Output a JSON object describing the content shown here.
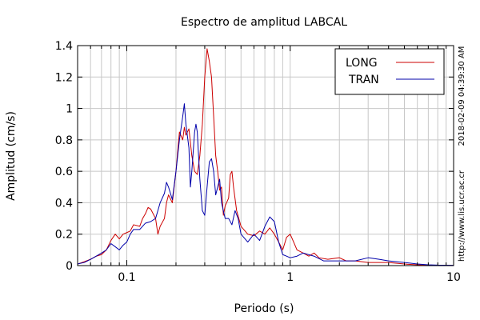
{
  "chart_data": {
    "type": "line",
    "title": "Espectro de amplitud LABCAL",
    "xlabel": "Periodo (s)",
    "ylabel": "Amplitud (cm/s)",
    "xscale": "log",
    "xlim": [
      0.05,
      10
    ],
    "ylim": [
      0,
      1.4
    ],
    "grid": true,
    "legend_position": "top-right",
    "x_ticks": [
      {
        "value": 0.1,
        "label": "0.1"
      },
      {
        "value": 1,
        "label": "1"
      },
      {
        "value": 10,
        "label": "10"
      }
    ],
    "y_ticks": [
      {
        "value": 0,
        "label": "0"
      },
      {
        "value": 0.2,
        "label": "0.2"
      },
      {
        "value": 0.4,
        "label": "0.4"
      },
      {
        "value": 0.6,
        "label": "0.6"
      },
      {
        "value": 0.8,
        "label": "0.8"
      },
      {
        "value": 1.0,
        "label": "1"
      },
      {
        "value": 1.2,
        "label": "1.2"
      },
      {
        "value": 1.4,
        "label": "1.4"
      }
    ],
    "series": [
      {
        "name": "LONG",
        "color": "#cc0000",
        "points": [
          [
            0.05,
            0.01
          ],
          [
            0.055,
            0.025
          ],
          [
            0.06,
            0.04
          ],
          [
            0.065,
            0.06
          ],
          [
            0.07,
            0.07
          ],
          [
            0.075,
            0.1
          ],
          [
            0.08,
            0.16
          ],
          [
            0.085,
            0.2
          ],
          [
            0.09,
            0.17
          ],
          [
            0.095,
            0.2
          ],
          [
            0.1,
            0.21
          ],
          [
            0.105,
            0.22
          ],
          [
            0.11,
            0.26
          ],
          [
            0.12,
            0.25
          ],
          [
            0.125,
            0.3
          ],
          [
            0.13,
            0.33
          ],
          [
            0.135,
            0.37
          ],
          [
            0.14,
            0.36
          ],
          [
            0.15,
            0.3
          ],
          [
            0.155,
            0.2
          ],
          [
            0.16,
            0.25
          ],
          [
            0.17,
            0.3
          ],
          [
            0.175,
            0.4
          ],
          [
            0.18,
            0.45
          ],
          [
            0.19,
            0.4
          ],
          [
            0.2,
            0.6
          ],
          [
            0.205,
            0.73
          ],
          [
            0.21,
            0.85
          ],
          [
            0.22,
            0.8
          ],
          [
            0.225,
            0.88
          ],
          [
            0.23,
            0.83
          ],
          [
            0.24,
            0.87
          ],
          [
            0.25,
            0.7
          ],
          [
            0.26,
            0.6
          ],
          [
            0.27,
            0.58
          ],
          [
            0.28,
            0.7
          ],
          [
            0.29,
            0.9
          ],
          [
            0.3,
            1.2
          ],
          [
            0.31,
            1.38
          ],
          [
            0.32,
            1.3
          ],
          [
            0.33,
            1.2
          ],
          [
            0.34,
            0.95
          ],
          [
            0.35,
            0.7
          ],
          [
            0.36,
            0.6
          ],
          [
            0.37,
            0.48
          ],
          [
            0.38,
            0.5
          ],
          [
            0.39,
            0.32
          ],
          [
            0.4,
            0.38
          ],
          [
            0.42,
            0.43
          ],
          [
            0.43,
            0.58
          ],
          [
            0.44,
            0.6
          ],
          [
            0.45,
            0.5
          ],
          [
            0.47,
            0.35
          ],
          [
            0.5,
            0.25
          ],
          [
            0.55,
            0.2
          ],
          [
            0.6,
            0.19
          ],
          [
            0.65,
            0.22
          ],
          [
            0.7,
            0.2
          ],
          [
            0.75,
            0.24
          ],
          [
            0.8,
            0.2
          ],
          [
            0.85,
            0.15
          ],
          [
            0.9,
            0.1
          ],
          [
            0.95,
            0.18
          ],
          [
            1.0,
            0.2
          ],
          [
            1.05,
            0.15
          ],
          [
            1.1,
            0.1
          ],
          [
            1.2,
            0.08
          ],
          [
            1.3,
            0.06
          ],
          [
            1.4,
            0.08
          ],
          [
            1.5,
            0.05
          ],
          [
            1.7,
            0.04
          ],
          [
            2.0,
            0.05
          ],
          [
            2.2,
            0.03
          ],
          [
            2.5,
            0.03
          ],
          [
            3.0,
            0.02
          ],
          [
            3.5,
            0.02
          ],
          [
            4.0,
            0.02
          ],
          [
            5.0,
            0.01
          ],
          [
            6.0,
            0.005
          ],
          [
            7.0,
            0.003
          ],
          [
            8.0,
            0.002
          ],
          [
            10,
            0.001
          ]
        ]
      },
      {
        "name": "TRAN",
        "color": "#0000aa",
        "points": [
          [
            0.05,
            0.01
          ],
          [
            0.055,
            0.02
          ],
          [
            0.06,
            0.04
          ],
          [
            0.065,
            0.06
          ],
          [
            0.07,
            0.08
          ],
          [
            0.075,
            0.1
          ],
          [
            0.08,
            0.14
          ],
          [
            0.085,
            0.12
          ],
          [
            0.09,
            0.1
          ],
          [
            0.095,
            0.13
          ],
          [
            0.1,
            0.15
          ],
          [
            0.105,
            0.2
          ],
          [
            0.11,
            0.23
          ],
          [
            0.12,
            0.23
          ],
          [
            0.13,
            0.27
          ],
          [
            0.14,
            0.28
          ],
          [
            0.15,
            0.3
          ],
          [
            0.155,
            0.35
          ],
          [
            0.16,
            0.4
          ],
          [
            0.17,
            0.46
          ],
          [
            0.175,
            0.53
          ],
          [
            0.18,
            0.5
          ],
          [
            0.19,
            0.42
          ],
          [
            0.2,
            0.6
          ],
          [
            0.21,
            0.8
          ],
          [
            0.22,
            0.95
          ],
          [
            0.225,
            1.03
          ],
          [
            0.23,
            0.9
          ],
          [
            0.24,
            0.75
          ],
          [
            0.245,
            0.5
          ],
          [
            0.25,
            0.6
          ],
          [
            0.26,
            0.85
          ],
          [
            0.265,
            0.9
          ],
          [
            0.27,
            0.85
          ],
          [
            0.28,
            0.55
          ],
          [
            0.29,
            0.35
          ],
          [
            0.3,
            0.32
          ],
          [
            0.31,
            0.5
          ],
          [
            0.32,
            0.66
          ],
          [
            0.33,
            0.68
          ],
          [
            0.34,
            0.6
          ],
          [
            0.35,
            0.45
          ],
          [
            0.36,
            0.5
          ],
          [
            0.37,
            0.55
          ],
          [
            0.38,
            0.4
          ],
          [
            0.4,
            0.3
          ],
          [
            0.42,
            0.3
          ],
          [
            0.44,
            0.26
          ],
          [
            0.46,
            0.35
          ],
          [
            0.48,
            0.3
          ],
          [
            0.5,
            0.2
          ],
          [
            0.55,
            0.15
          ],
          [
            0.6,
            0.2
          ],
          [
            0.65,
            0.16
          ],
          [
            0.7,
            0.25
          ],
          [
            0.75,
            0.31
          ],
          [
            0.8,
            0.28
          ],
          [
            0.85,
            0.15
          ],
          [
            0.9,
            0.07
          ],
          [
            0.95,
            0.06
          ],
          [
            1.0,
            0.05
          ],
          [
            1.1,
            0.06
          ],
          [
            1.2,
            0.08
          ],
          [
            1.4,
            0.06
          ],
          [
            1.6,
            0.03
          ],
          [
            2.0,
            0.03
          ],
          [
            2.5,
            0.03
          ],
          [
            3.0,
            0.05
          ],
          [
            3.5,
            0.04
          ],
          [
            4.0,
            0.03
          ],
          [
            5.0,
            0.02
          ],
          [
            6.0,
            0.01
          ],
          [
            7.0,
            0.005
          ],
          [
            8.0,
            0.003
          ],
          [
            10,
            0.002
          ]
        ]
      }
    ]
  },
  "side_labels": {
    "timestamp": "2018-02-09 04:39:30 AM",
    "url": "http://www.lis.ucr.ac.cr"
  }
}
